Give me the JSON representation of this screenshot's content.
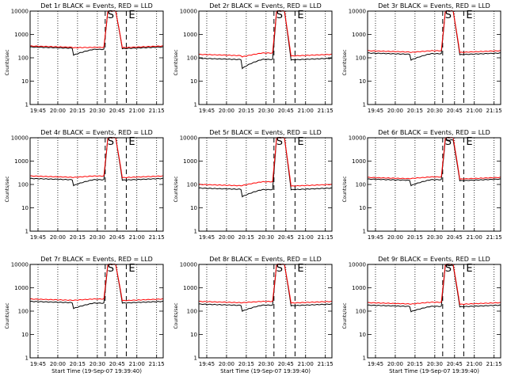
{
  "chart_data": [
    {
      "type": "line",
      "title": "Det 1r BLACK = Events, RED = LLD",
      "xlabel": "",
      "ylabel": "Counts/sec",
      "yscale": "log",
      "ylim": [
        1,
        10000
      ],
      "x_tick_labels": [
        "19:45",
        "20:00",
        "20:15",
        "20:30",
        "20:45",
        "21:00",
        "21:15"
      ],
      "y_tick_labels": [
        "1",
        "10",
        "100",
        "1000",
        "10000"
      ],
      "markers": [
        {
          "label": "S",
          "x": "20:36"
        },
        {
          "label": "E",
          "x": "20:52"
        }
      ],
      "series": [
        {
          "color": "#000000",
          "levels": {
            "base": 290,
            "dip": 130,
            "dip_end": 230,
            "peak": 10000
          }
        },
        {
          "color": "#ff0000",
          "levels": {
            "base": 320,
            "dip": 270,
            "dip_end": 280,
            "peak": 10000
          }
        }
      ]
    },
    {
      "type": "line",
      "title": "Det 2r BLACK = Events, RED = LLD",
      "xlabel": "",
      "ylabel": "Counts/sec",
      "yscale": "log",
      "ylim": [
        1,
        10000
      ],
      "x_tick_labels": [
        "19:45",
        "20:00",
        "20:15",
        "20:30",
        "20:45",
        "21:00",
        "21:15"
      ],
      "y_tick_labels": [
        "1",
        "10",
        "100",
        "1000",
        "10000"
      ],
      "markers": [
        {
          "label": "S",
          "x": "20:36"
        },
        {
          "label": "E",
          "x": "20:52"
        }
      ],
      "series": [
        {
          "color": "#000000",
          "levels": {
            "base": 95,
            "dip": 35,
            "dip_end": 85,
            "peak": 10000
          }
        },
        {
          "color": "#ff0000",
          "levels": {
            "base": 140,
            "dip": 110,
            "dip_end": 160,
            "peak": 10000
          }
        }
      ]
    },
    {
      "type": "line",
      "title": "Det 3r BLACK = Events, RED = LLD",
      "xlabel": "",
      "ylabel": "Counts/sec",
      "yscale": "log",
      "ylim": [
        1,
        10000
      ],
      "x_tick_labels": [
        "19:45",
        "20:00",
        "20:15",
        "20:30",
        "20:45",
        "21:00",
        "21:15"
      ],
      "y_tick_labels": [
        "1",
        "10",
        "100",
        "1000",
        "10000"
      ],
      "markers": [
        {
          "label": "S",
          "x": "20:36"
        },
        {
          "label": "E",
          "x": "20:52"
        }
      ],
      "series": [
        {
          "color": "#000000",
          "levels": {
            "base": 160,
            "dip": 80,
            "dip_end": 150,
            "peak": 10000
          }
        },
        {
          "color": "#ff0000",
          "levels": {
            "base": 200,
            "dip": 170,
            "dip_end": 200,
            "peak": 10000
          }
        }
      ]
    },
    {
      "type": "line",
      "title": "Det 4r BLACK = Events, RED = LLD",
      "xlabel": "",
      "ylabel": "Counts/sec",
      "yscale": "log",
      "ylim": [
        1,
        10000
      ],
      "x_tick_labels": [
        "19:45",
        "20:00",
        "20:15",
        "20:30",
        "20:45",
        "21:00",
        "21:15"
      ],
      "y_tick_labels": [
        "1",
        "10",
        "100",
        "1000",
        "10000"
      ],
      "markers": [
        {
          "label": "S",
          "x": "20:36"
        },
        {
          "label": "E",
          "x": "20:52"
        }
      ],
      "series": [
        {
          "color": "#000000",
          "levels": {
            "base": 180,
            "dip": 90,
            "dip_end": 160,
            "peak": 10000
          }
        },
        {
          "color": "#ff0000",
          "levels": {
            "base": 230,
            "dip": 200,
            "dip_end": 230,
            "peak": 10000
          }
        }
      ]
    },
    {
      "type": "line",
      "title": "Det 5r BLACK = Events, RED = LLD",
      "xlabel": "",
      "ylabel": "Counts/sec",
      "yscale": "log",
      "ylim": [
        1,
        10000
      ],
      "x_tick_labels": [
        "19:45",
        "20:00",
        "20:15",
        "20:30",
        "20:45",
        "21:00",
        "21:15"
      ],
      "y_tick_labels": [
        "1",
        "10",
        "100",
        "1000",
        "10000"
      ],
      "markers": [
        {
          "label": "S",
          "x": "20:36"
        },
        {
          "label": "E",
          "x": "20:52"
        }
      ],
      "series": [
        {
          "color": "#000000",
          "levels": {
            "base": 70,
            "dip": 30,
            "dip_end": 60,
            "peak": 10000
          }
        },
        {
          "color": "#ff0000",
          "levels": {
            "base": 100,
            "dip": 90,
            "dip_end": 130,
            "peak": 10000
          }
        }
      ]
    },
    {
      "type": "line",
      "title": "Det 6r BLACK = Events, RED = LLD",
      "xlabel": "",
      "ylabel": "Counts/sec",
      "yscale": "log",
      "ylim": [
        1,
        10000
      ],
      "x_tick_labels": [
        "19:45",
        "20:00",
        "20:15",
        "20:30",
        "20:45",
        "21:00",
        "21:15"
      ],
      "y_tick_labels": [
        "1",
        "10",
        "100",
        "1000",
        "10000"
      ],
      "markers": [
        {
          "label": "S",
          "x": "20:36"
        },
        {
          "label": "E",
          "x": "20:52"
        }
      ],
      "series": [
        {
          "color": "#000000",
          "levels": {
            "base": 170,
            "dip": 90,
            "dip_end": 160,
            "peak": 8000
          }
        },
        {
          "color": "#ff0000",
          "levels": {
            "base": 200,
            "dip": 180,
            "dip_end": 210,
            "peak": 10000
          }
        }
      ]
    },
    {
      "type": "line",
      "title": "Det 7r BLACK = Events, RED = LLD",
      "xlabel": "Start Time (19-Sep-07 19:39:40)",
      "ylabel": "Counts/sec",
      "yscale": "log",
      "ylim": [
        1,
        10000
      ],
      "x_tick_labels": [
        "19:45",
        "20:00",
        "20:15",
        "20:30",
        "20:45",
        "21:00",
        "21:15"
      ],
      "y_tick_labels": [
        "1",
        "10",
        "100",
        "1000",
        "10000"
      ],
      "markers": [
        {
          "label": "S",
          "x": "20:36"
        },
        {
          "label": "E",
          "x": "20:52"
        }
      ],
      "series": [
        {
          "color": "#000000",
          "levels": {
            "base": 260,
            "dip": 130,
            "dip_end": 220,
            "peak": 10000
          }
        },
        {
          "color": "#ff0000",
          "levels": {
            "base": 330,
            "dip": 290,
            "dip_end": 330,
            "peak": 10000
          }
        }
      ]
    },
    {
      "type": "line",
      "title": "Det 8r BLACK = Events, RED = LLD",
      "xlabel": "Start Time (19-Sep-07 19:39:40)",
      "ylabel": "Counts/sec",
      "yscale": "log",
      "ylim": [
        1,
        10000
      ],
      "x_tick_labels": [
        "19:45",
        "20:00",
        "20:15",
        "20:30",
        "20:45",
        "21:00",
        "21:15"
      ],
      "y_tick_labels": [
        "1",
        "10",
        "100",
        "1000",
        "10000"
      ],
      "markers": [
        {
          "label": "S",
          "x": "20:36"
        },
        {
          "label": "E",
          "x": "20:52"
        }
      ],
      "series": [
        {
          "color": "#000000",
          "levels": {
            "base": 200,
            "dip": 100,
            "dip_end": 180,
            "peak": 10000
          }
        },
        {
          "color": "#ff0000",
          "levels": {
            "base": 260,
            "dip": 230,
            "dip_end": 260,
            "peak": 10000
          }
        }
      ]
    },
    {
      "type": "line",
      "title": "Det 9r BLACK = Events, RED = LLD",
      "xlabel": "Start Time (19-Sep-07 19:39:40)",
      "ylabel": "Counts/sec",
      "yscale": "log",
      "ylim": [
        1,
        10000
      ],
      "x_tick_labels": [
        "19:45",
        "20:00",
        "20:15",
        "20:30",
        "20:45",
        "21:00",
        "21:15"
      ],
      "y_tick_labels": [
        "1",
        "10",
        "100",
        "1000",
        "10000"
      ],
      "markers": [
        {
          "label": "S",
          "x": "20:36"
        },
        {
          "label": "E",
          "x": "20:52"
        }
      ],
      "series": [
        {
          "color": "#000000",
          "levels": {
            "base": 180,
            "dip": 95,
            "dip_end": 160,
            "peak": 9000
          }
        },
        {
          "color": "#ff0000",
          "levels": {
            "base": 230,
            "dip": 200,
            "dip_end": 240,
            "peak": 10000
          }
        }
      ]
    }
  ]
}
